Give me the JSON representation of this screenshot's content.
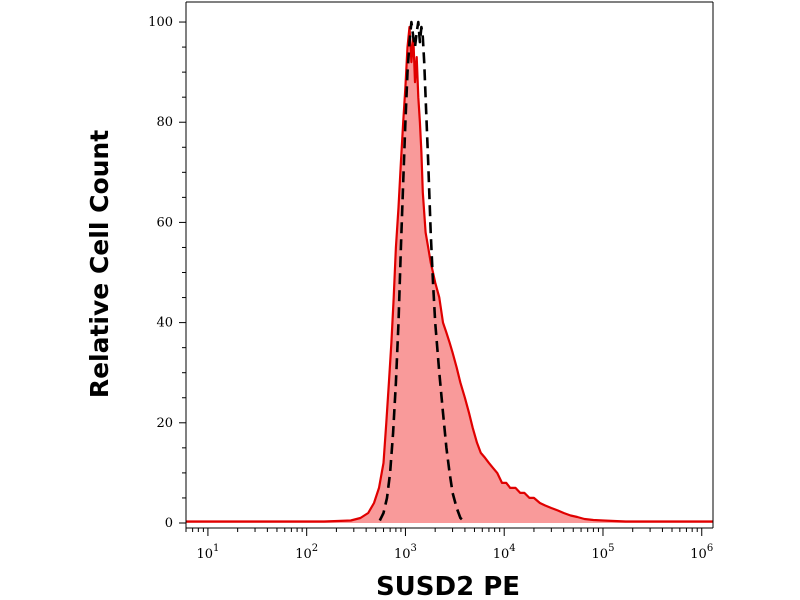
{
  "chart_data": {
    "type": "area",
    "xlabel": "SUSD2 PE",
    "ylabel": "Relative Cell Count",
    "x_scale": "log",
    "xlim": [
      6,
      1300000
    ],
    "ylim": [
      -1,
      104
    ],
    "x_ticks": [
      {
        "base": "10",
        "exp": "1",
        "value": 10
      },
      {
        "base": "10",
        "exp": "2",
        "value": 100
      },
      {
        "base": "10",
        "exp": "3",
        "value": 1000
      },
      {
        "base": "10",
        "exp": "4",
        "value": 10000
      },
      {
        "base": "10",
        "exp": "5",
        "value": 100000
      },
      {
        "base": "10",
        "exp": "6",
        "value": 1000000
      }
    ],
    "y_ticks": [
      "0",
      "20",
      "40",
      "60",
      "80",
      "100"
    ],
    "y_tick_values": [
      0,
      20,
      40,
      60,
      80,
      100
    ],
    "grid": false,
    "series": [
      {
        "style": "filled",
        "color": "#e00000",
        "fill": "#f99a9a",
        "x": [
          6,
          150,
          280,
          350,
          420,
          480,
          540,
          600,
          640,
          680,
          720,
          760,
          800,
          850,
          900,
          950,
          1000,
          1050,
          1100,
          1150,
          1200,
          1250,
          1300,
          1350,
          1400,
          1450,
          1500,
          1550,
          1600,
          1700,
          1800,
          1900,
          2000,
          2200,
          2400,
          2600,
          2800,
          3000,
          3300,
          3600,
          4000,
          4400,
          4800,
          5300,
          5800,
          6400,
          7000,
          7700,
          8500,
          9500,
          10500,
          11500,
          13000,
          14500,
          16000,
          18000,
          20000,
          23000,
          26000,
          30000,
          35000,
          40000,
          47000,
          55000,
          65000,
          80000,
          100000,
          130000,
          170000,
          250000,
          400000,
          700000,
          1300000
        ],
        "y": [
          0.3,
          0.3,
          0.5,
          1,
          2,
          4,
          7,
          12,
          20,
          28,
          36,
          45,
          55,
          63,
          72,
          80,
          87,
          95,
          99,
          92,
          97,
          88,
          93,
          85,
          80,
          74,
          66,
          62,
          58,
          55,
          52,
          50,
          48,
          45,
          40,
          38,
          36,
          34,
          31,
          28,
          25,
          22,
          19,
          16,
          14,
          13,
          12,
          11,
          10,
          8,
          8,
          7,
          7,
          6,
          6,
          5,
          5,
          4,
          3.5,
          3,
          2.5,
          2,
          1.5,
          1.2,
          0.8,
          0.6,
          0.5,
          0.4,
          0.3,
          0.3,
          0.3,
          0.3,
          0.3
        ]
      },
      {
        "style": "dashed",
        "color": "#000000",
        "x": [
          550,
          600,
          650,
          700,
          750,
          800,
          850,
          900,
          950,
          1000,
          1050,
          1100,
          1150,
          1200,
          1250,
          1300,
          1350,
          1400,
          1450,
          1500,
          1550,
          1600,
          1700,
          1800,
          1900,
          2000,
          2200,
          2400,
          2600,
          2800,
          3000,
          3300,
          3600,
          4000
        ],
        "y": [
          0.5,
          2,
          5,
          10,
          18,
          28,
          40,
          55,
          68,
          80,
          90,
          96,
          100,
          97,
          95,
          98,
          100,
          96,
          99,
          97,
          92,
          85,
          72,
          58,
          48,
          40,
          30,
          22,
          15,
          10,
          6,
          3,
          1,
          0.2
        ]
      }
    ]
  }
}
